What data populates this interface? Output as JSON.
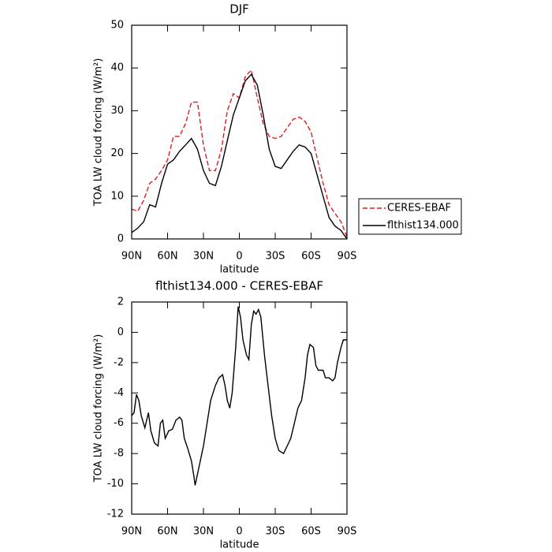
{
  "chart_data": [
    {
      "type": "line",
      "title": "DJF",
      "xlabel": "latitude",
      "ylabel": "TOA LW cloud forcing (W/m²)",
      "x": [
        90,
        85,
        80,
        75,
        70,
        65,
        60,
        55,
        50,
        45,
        40,
        35,
        30,
        25,
        20,
        15,
        10,
        5,
        0,
        -5,
        -10,
        -15,
        -20,
        -25,
        -30,
        -35,
        -40,
        -45,
        -50,
        -55,
        -60,
        -65,
        -70,
        -75,
        -80,
        -85,
        -90
      ],
      "series": [
        {
          "name": "CERES-EBAF",
          "color": "#e41a1c",
          "linestyle": "dashed",
          "values": [
            7,
            6.5,
            9,
            13,
            14,
            16,
            18.5,
            24,
            24,
            27,
            32,
            32,
            22,
            16,
            16,
            21,
            30,
            34,
            33,
            38,
            39.5,
            33,
            27,
            24,
            23.5,
            24,
            26,
            28,
            28.5,
            27.5,
            25,
            19,
            13,
            8,
            6,
            4,
            0.5
          ]
        },
        {
          "name": "flthist134.000",
          "color": "#000000",
          "linestyle": "solid",
          "values": [
            1.5,
            2.5,
            4,
            8,
            7.5,
            13,
            17.5,
            18.5,
            20.5,
            22,
            23.5,
            21,
            16,
            13,
            12.5,
            17,
            23,
            29,
            33,
            37,
            38.5,
            36,
            29,
            21,
            17,
            16.5,
            18.5,
            20.5,
            22,
            21.5,
            20,
            15,
            10,
            5,
            3,
            2,
            0
          ]
        }
      ],
      "xlim": [
        90,
        -90
      ],
      "xticks": [
        {
          "value": 90,
          "label": "90N"
        },
        {
          "value": 60,
          "label": "60N"
        },
        {
          "value": 30,
          "label": "30N"
        },
        0,
        {
          "value": -30,
          "label": "30S"
        },
        {
          "value": -60,
          "label": "60S"
        },
        {
          "value": -90,
          "label": "90S"
        }
      ],
      "ylim": [
        0,
        50
      ],
      "yticks": [
        0,
        10,
        20,
        30,
        40,
        50
      ],
      "legend": "right"
    },
    {
      "type": "line",
      "title": "flthist134.000 - CERES-EBAF",
      "xlabel": "latitude",
      "ylabel": "TOA LW cloud forcing (W/m²)",
      "x": [
        90,
        88,
        86,
        84,
        82,
        79,
        76,
        74,
        71,
        68,
        66,
        64,
        62,
        59,
        56,
        53,
        50,
        48,
        46,
        43,
        40,
        38,
        37,
        34,
        30,
        27,
        24,
        20,
        17,
        14,
        12,
        10,
        8,
        6,
        3,
        1,
        -1,
        -3,
        -6,
        -8,
        -10,
        -12,
        -14,
        -16,
        -18,
        -21,
        -24,
        -27,
        -30,
        -33,
        -37,
        -40,
        -43,
        -46,
        -49,
        -52,
        -55,
        -57,
        -59,
        -62,
        -64,
        -66,
        -70,
        -72,
        -75,
        -78,
        -80,
        -82,
        -85,
        -87,
        -90
      ],
      "series": [
        {
          "color": "#000000",
          "linestyle": "solid",
          "values": [
            -5.5,
            -5.3,
            -4.1,
            -4.5,
            -5.5,
            -6.3,
            -5.3,
            -6.5,
            -7.3,
            -7.5,
            -6,
            -5.8,
            -7,
            -6.5,
            -6.4,
            -5.8,
            -5.6,
            -5.8,
            -7,
            -7.7,
            -8.5,
            -9.5,
            -10.1,
            -9,
            -7.5,
            -6,
            -4.5,
            -3.5,
            -3,
            -2.8,
            -3.5,
            -4.5,
            -5,
            -4,
            -1,
            1.7,
            1,
            -0.5,
            -1.5,
            -1.8,
            0.5,
            1.4,
            1.2,
            1.5,
            1,
            -1.5,
            -3.5,
            -5.5,
            -7,
            -7.8,
            -8,
            -7.5,
            -7,
            -6,
            -5,
            -4.5,
            -3,
            -1.5,
            -0.8,
            -1,
            -2.2,
            -2.5,
            -2.5,
            -3,
            -3,
            -3.2,
            -3,
            -2,
            -1,
            -0.5,
            -0.5
          ]
        }
      ],
      "xlim": [
        90,
        -90
      ],
      "xticks": [
        {
          "value": 90,
          "label": "90N"
        },
        {
          "value": 60,
          "label": "60N"
        },
        {
          "value": 30,
          "label": "30N"
        },
        0,
        {
          "value": -30,
          "label": "30S"
        },
        {
          "value": -60,
          "label": "60S"
        },
        {
          "value": -90,
          "label": "90S"
        }
      ],
      "ylim": [
        -12,
        2
      ],
      "yticks": [
        -12,
        -10,
        -8,
        -6,
        -4,
        -2,
        0,
        2
      ]
    }
  ]
}
